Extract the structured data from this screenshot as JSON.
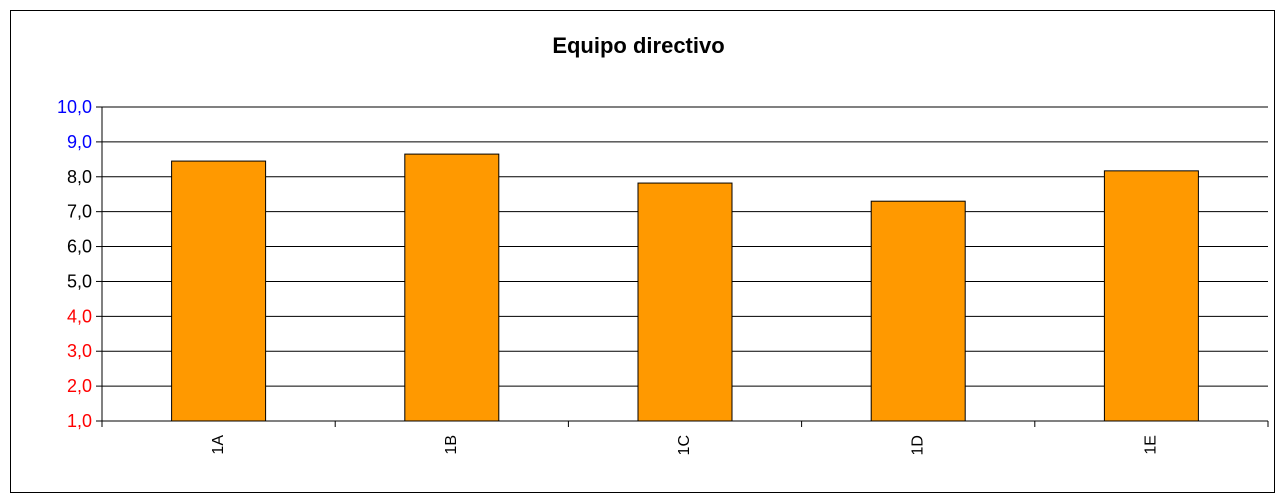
{
  "chart_data": {
    "type": "bar",
    "title": "Equipo directivo",
    "categories": [
      "1A",
      "1B",
      "1C",
      "1D",
      "1E"
    ],
    "values": [
      8.45,
      8.65,
      7.82,
      7.3,
      8.17
    ],
    "ylim": [
      1.0,
      10.0
    ],
    "yticks": [
      "1,0",
      "2,0",
      "3,0",
      "4,0",
      "5,0",
      "6,0",
      "7,0",
      "8,0",
      "9,0",
      "10,0"
    ],
    "ytick_colors": [
      "#ff0000",
      "#ff0000",
      "#ff0000",
      "#ff0000",
      "#000000",
      "#000000",
      "#000000",
      "#000000",
      "#0000ff",
      "#0000ff"
    ],
    "bar_color": "#ff9900",
    "grid": true,
    "legend": false
  }
}
